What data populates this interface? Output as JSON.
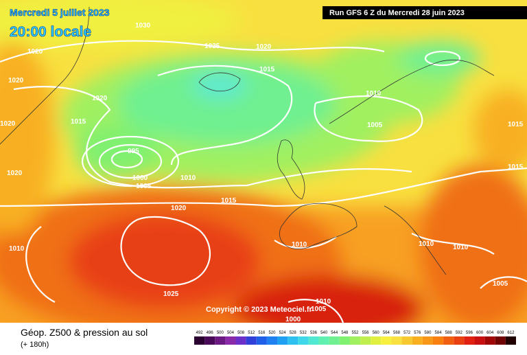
{
  "header": {
    "date": "Mercredi 5 juillet 2023",
    "time": "20:00 locale",
    "run": "Run GFS 6 Z du Mercredi 28 juin 2023"
  },
  "map": {
    "isobar_labels": [
      1030,
      1025,
      1020,
      1020,
      1020,
      1015,
      1020,
      1010,
      1015,
      1020,
      1005,
      1015,
      995,
      1020,
      1000,
      1005,
      1010,
      1015,
      1015,
      1020,
      1010,
      1010,
      1010,
      1010,
      1025,
      1005,
      1010,
      1005,
      1000
    ],
    "copyright": "Copyright © 2023 Meteociel.fr"
  },
  "footer": {
    "title": "Géop. Z500 & pression au sol",
    "lead": "(+ 180h)"
  },
  "legend": {
    "values": [
      492,
      496,
      500,
      504,
      508,
      512,
      516,
      520,
      524,
      528,
      532,
      536,
      540,
      544,
      548,
      552,
      556,
      560,
      564,
      568,
      572,
      576,
      580,
      584,
      588,
      592,
      596,
      600,
      604,
      608,
      612
    ],
    "colors": [
      "#2a0030",
      "#4a0a5a",
      "#6a1a80",
      "#8a2aa8",
      "#6a30c8",
      "#3040d8",
      "#2060e8",
      "#2080f0",
      "#20a0f0",
      "#30c0f0",
      "#40d8e8",
      "#50e8d0",
      "#60f0b0",
      "#70f090",
      "#80f070",
      "#a0f060",
      "#c0f050",
      "#e0f040",
      "#f8f040",
      "#f8e040",
      "#f8c830",
      "#f8b020",
      "#f89818",
      "#f88010",
      "#f06010",
      "#e84010",
      "#e02010",
      "#c81010",
      "#a00808",
      "#700404",
      "#200000"
    ]
  }
}
